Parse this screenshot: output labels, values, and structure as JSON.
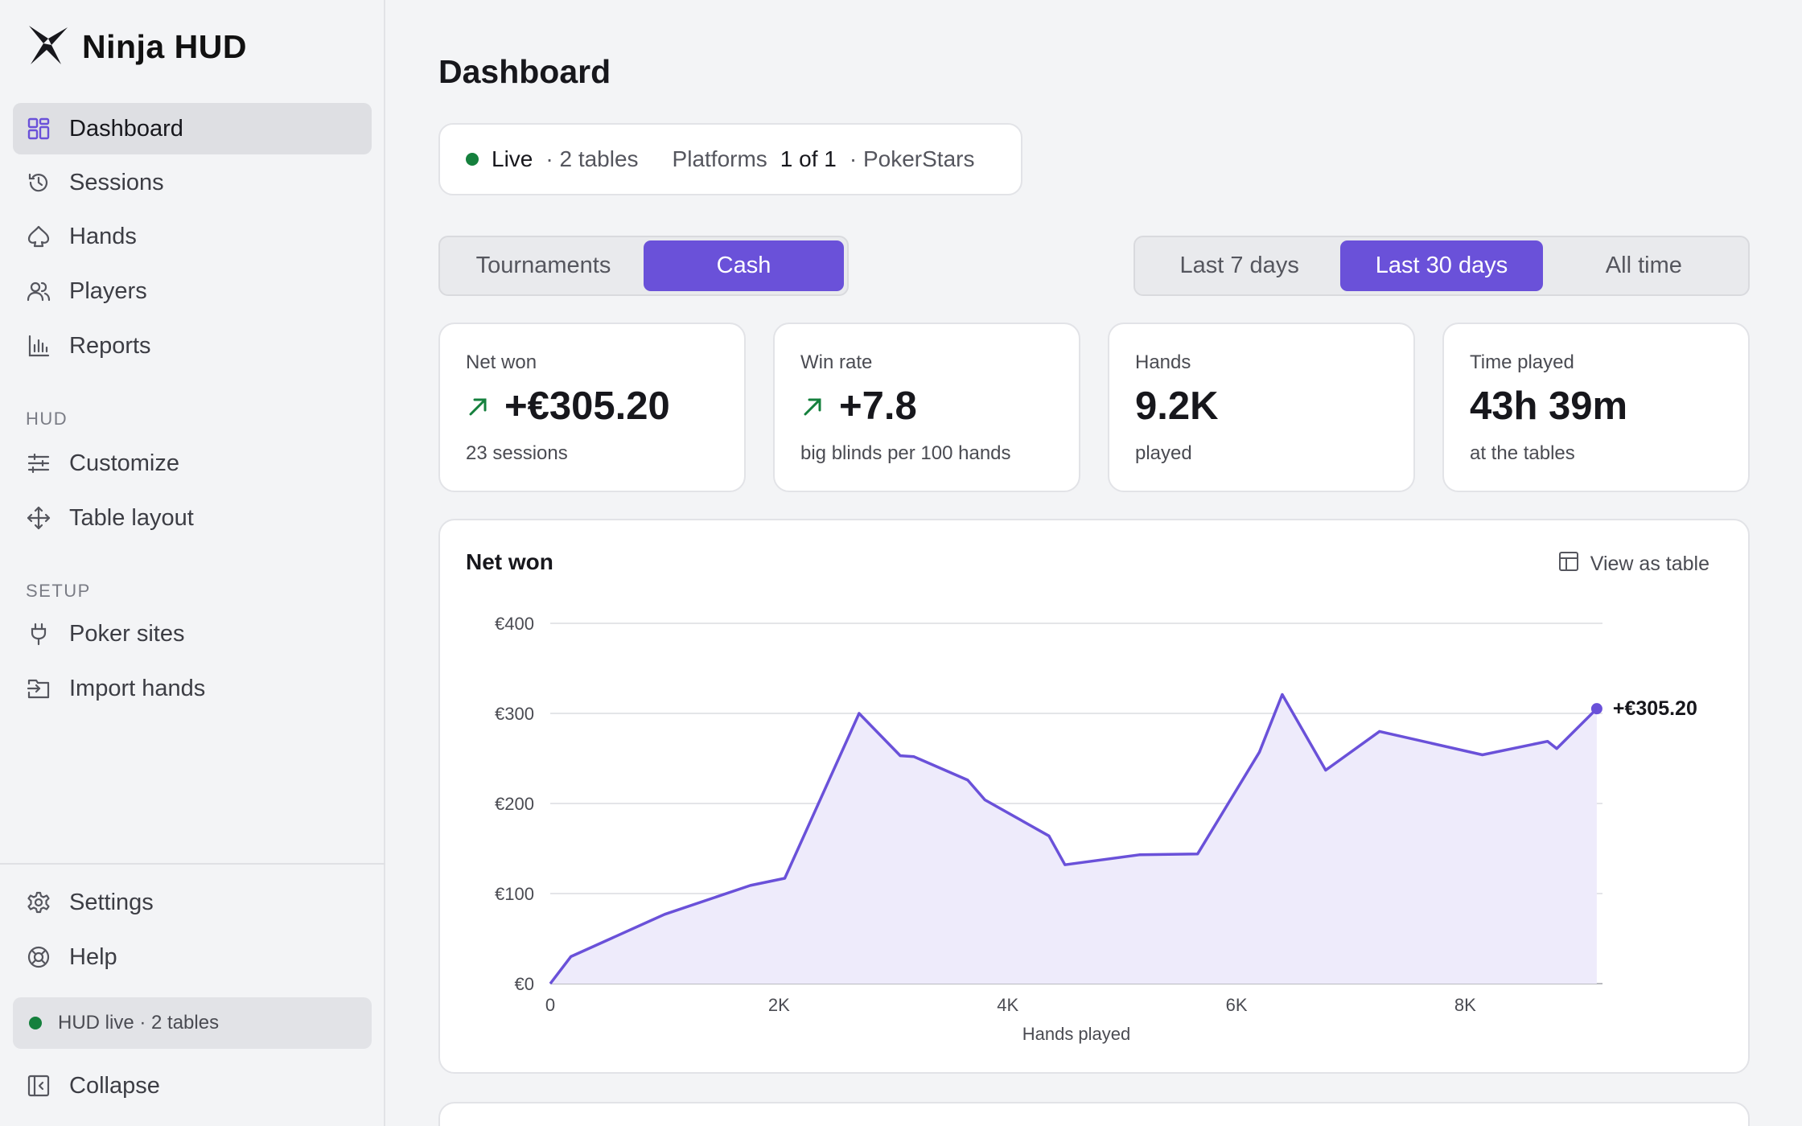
{
  "brand": {
    "name": "Ninja HUD"
  },
  "sidebar": {
    "items": [
      {
        "label": "Dashboard"
      },
      {
        "label": "Sessions"
      },
      {
        "label": "Hands"
      },
      {
        "label": "Players"
      },
      {
        "label": "Reports"
      }
    ],
    "hud_section": "HUD",
    "hud_items": [
      {
        "label": "Customize"
      },
      {
        "label": "Table layout"
      }
    ],
    "setup_section": "SETUP",
    "setup_items": [
      {
        "label": "Poker sites"
      },
      {
        "label": "Import hands"
      }
    ],
    "footer_items": [
      {
        "label": "Settings"
      },
      {
        "label": "Help"
      }
    ],
    "hud_status": "HUD live · 2 tables",
    "collapse": "Collapse"
  },
  "main": {
    "title": "Dashboard",
    "live": {
      "status": "Live",
      "tables": "· 2 tables",
      "platforms_label": "Platforms",
      "platforms_value": "1 of 1",
      "platform_name": "· PokerStars"
    },
    "game_type_tabs": [
      {
        "label": "Tournaments",
        "active": false
      },
      {
        "label": "Cash",
        "active": true
      }
    ],
    "range_tabs": [
      {
        "label": "Last 7 days",
        "active": false
      },
      {
        "label": "Last 30 days",
        "active": true
      },
      {
        "label": "All time",
        "active": false
      }
    ],
    "stats": [
      {
        "label": "Net won",
        "value": "+€305.20",
        "sub": "23 sessions",
        "trend": "up"
      },
      {
        "label": "Win rate",
        "value": "+7.8",
        "sub": "big blinds per 100 hands",
        "trend": "up"
      },
      {
        "label": "Hands",
        "value": "9.2K",
        "sub": "played"
      },
      {
        "label": "Time played",
        "value": "43h 39m",
        "sub": "at the tables"
      }
    ],
    "chart_card": {
      "title": "Net won",
      "view_table": "View as table"
    }
  },
  "colors": {
    "accent": "#6a51d9",
    "live_green": "#15803d",
    "area_fill": "#eeebfb"
  },
  "chart_data": {
    "type": "area",
    "title": "Net won",
    "xlabel": "Hands played",
    "ylabel": "",
    "x_ticks": [
      "0",
      "2K",
      "4K",
      "6K",
      "8K"
    ],
    "y_ticks": [
      "€0",
      "€100",
      "€200",
      "€300",
      "€400"
    ],
    "xlim": [
      0,
      9200
    ],
    "ylim": [
      0,
      400
    ],
    "grid": true,
    "end_label": "+€305.20",
    "x": [
      0,
      180,
      1000,
      1750,
      2050,
      2700,
      3060,
      3180,
      3650,
      3800,
      4360,
      4500,
      5150,
      5660,
      6200,
      6400,
      6780,
      7250,
      8150,
      8720,
      8800,
      9150
    ],
    "y": [
      0,
      30,
      77,
      109,
      117,
      300,
      253,
      252,
      226,
      204,
      164,
      132,
      143,
      144,
      257,
      321,
      237,
      280,
      254,
      269,
      261,
      305.2
    ]
  }
}
